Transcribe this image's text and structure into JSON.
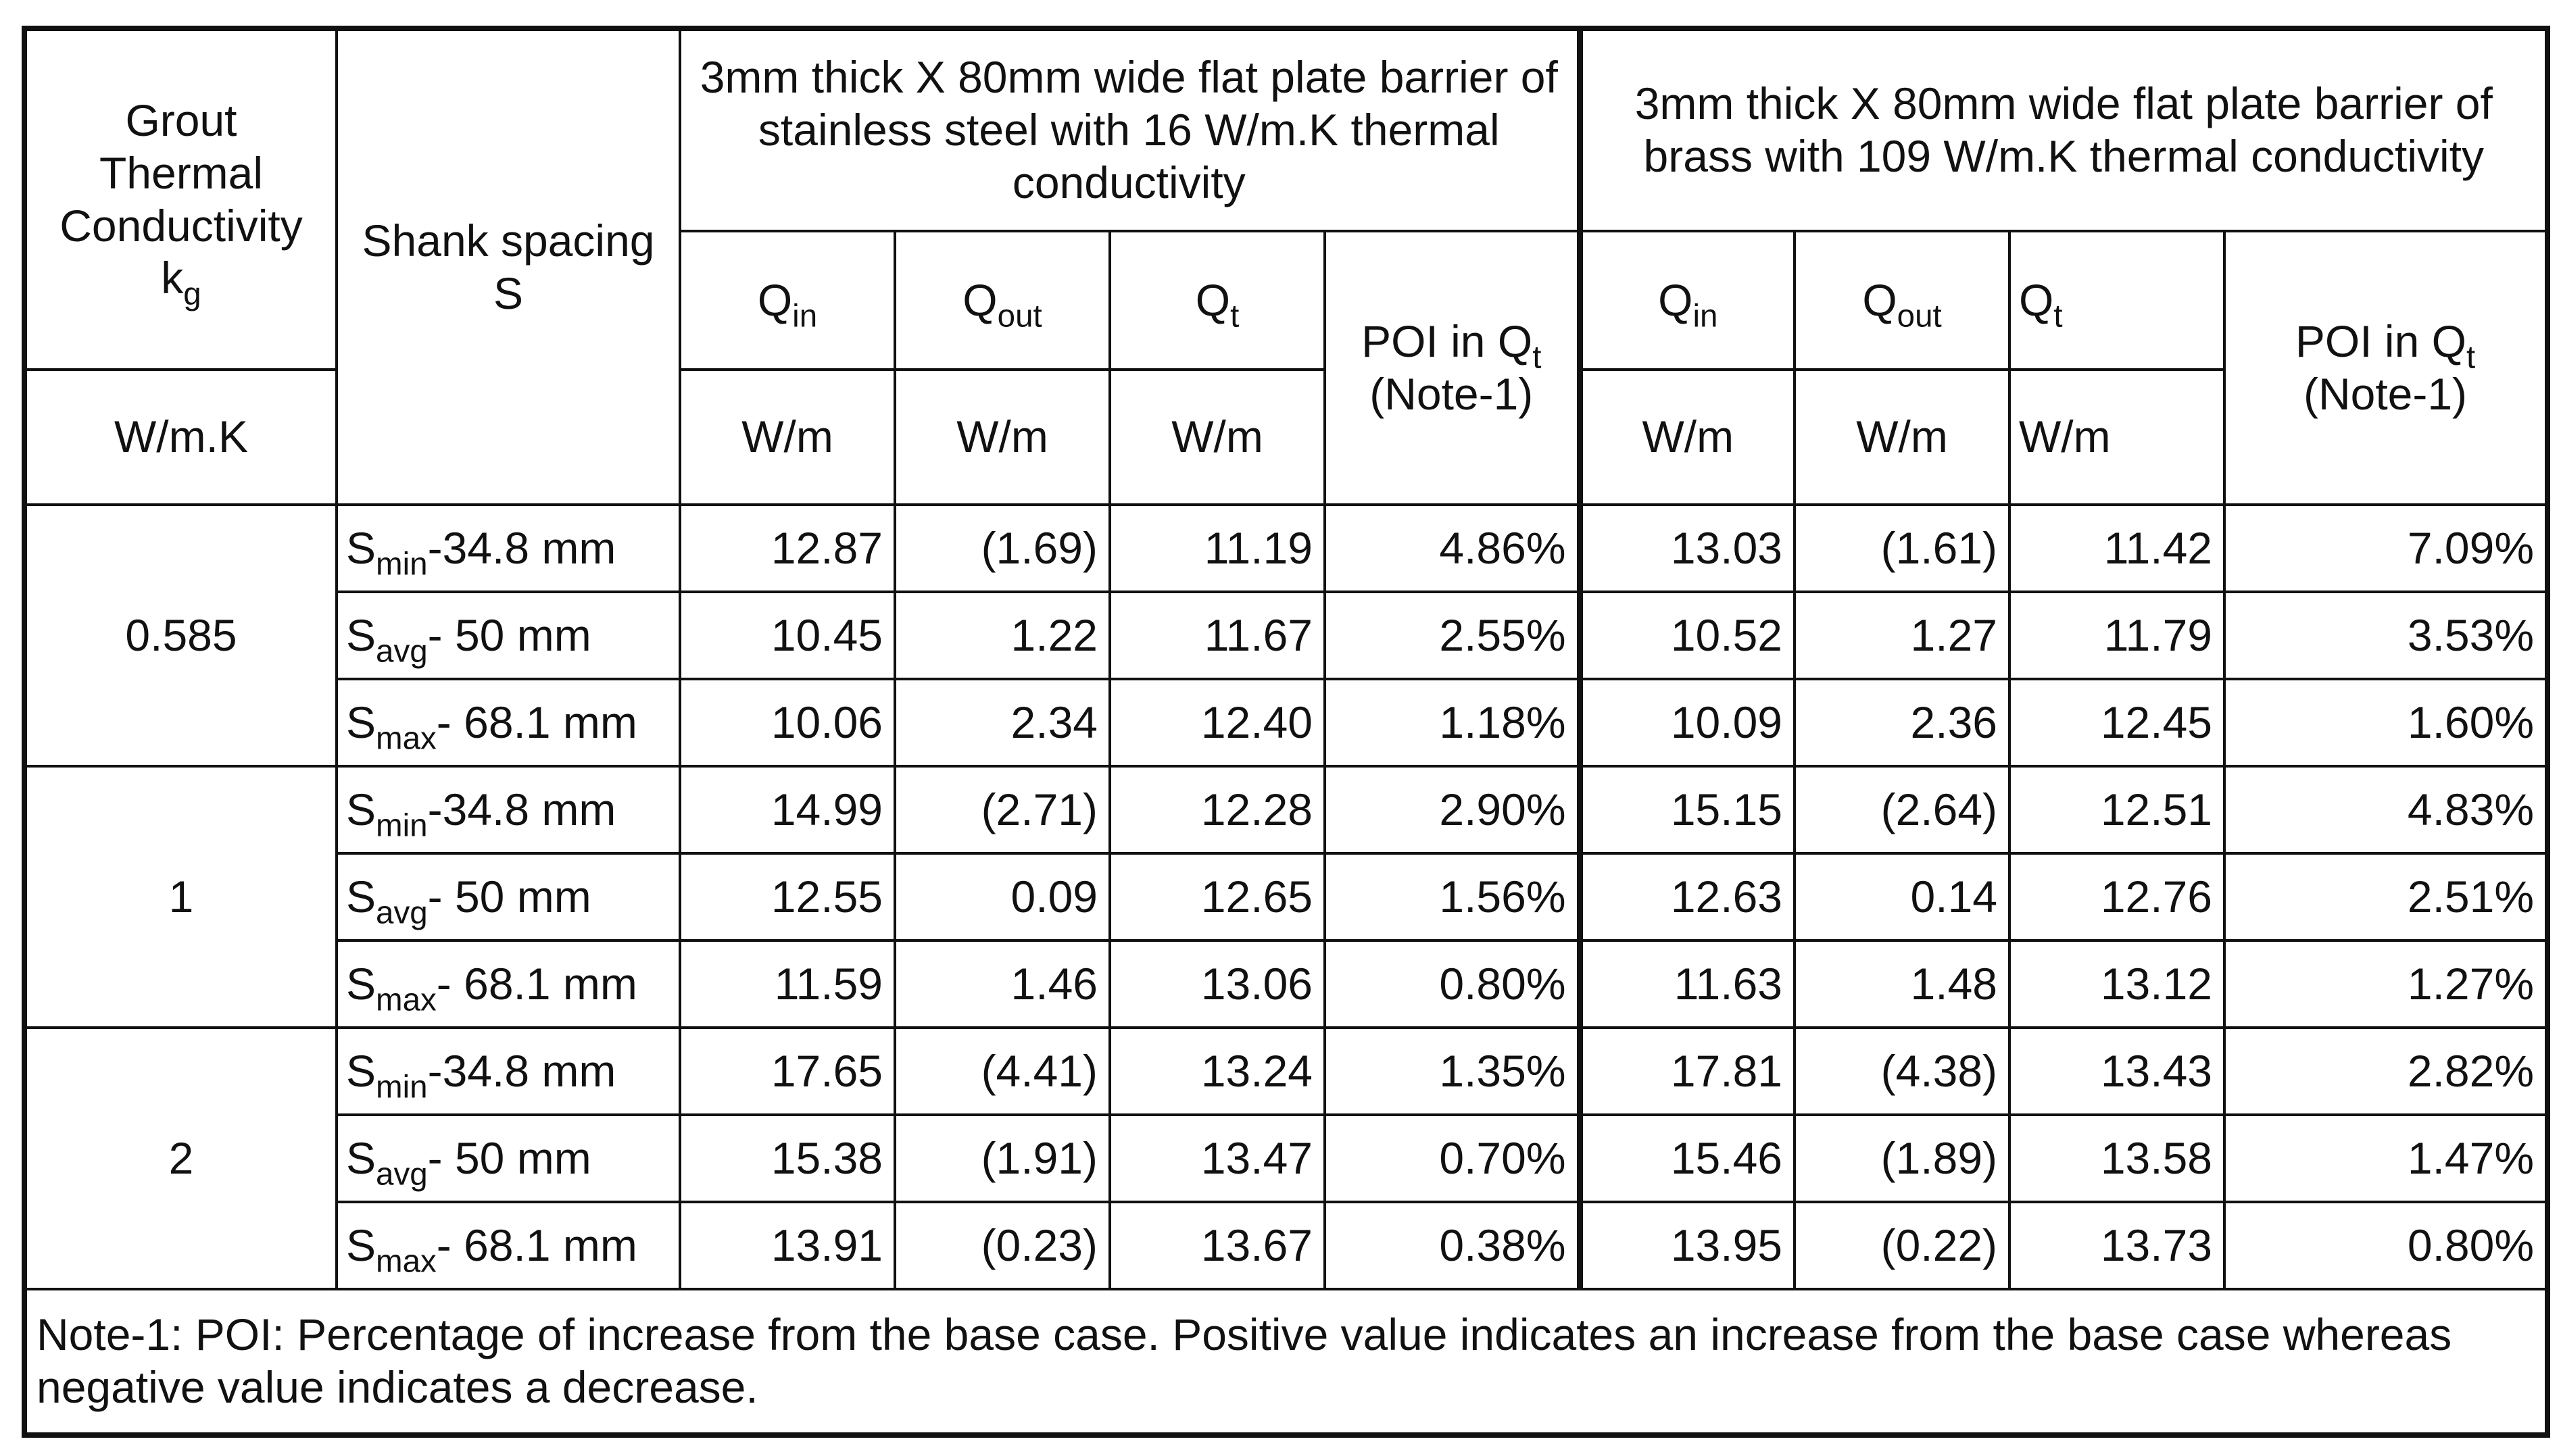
{
  "headers": {
    "grout_label": "Grout Thermal Conductivity k",
    "grout_label_line1": "Grout",
    "grout_label_line2": "Thermal",
    "grout_label_line3": "Conductivity",
    "grout_symbol": "k",
    "grout_symbol_sub": "g",
    "grout_unit": "W/m.K",
    "shank_line1": "Shank spacing",
    "shank_line2": "S",
    "group1_title": "3mm thick X 80mm wide flat plate barrier of stainless steel with 16 W/m.K thermal conductivity",
    "group2_title": "3mm thick X 80mm wide flat plate barrier of brass with 109 W/m.K thermal conductivity",
    "q_symbol": "Q",
    "q_in_sub": "in",
    "q_out_sub": "out",
    "q_t_sub": "t",
    "poi_prefix": "POI in Q",
    "poi_sub": "t",
    "poi_note": "(Note-1)",
    "unit_wm": "W/m"
  },
  "groups": [
    {
      "kg": "0.585",
      "rows": [
        {
          "s_main": "S",
          "s_sub": "min",
          "s_rest": "-34.8 mm",
          "ss_qin": "12.87",
          "ss_qout": "(1.69)",
          "ss_qt": "11.19",
          "ss_poi": "4.86%",
          "br_qin": "13.03",
          "br_qout": "(1.61)",
          "br_qt": "11.42",
          "br_poi": "7.09%"
        },
        {
          "s_main": "S",
          "s_sub": "avg",
          "s_rest": "- 50 mm",
          "ss_qin": "10.45",
          "ss_qout": "1.22",
          "ss_qt": "11.67",
          "ss_poi": "2.55%",
          "br_qin": "10.52",
          "br_qout": "1.27",
          "br_qt": "11.79",
          "br_poi": "3.53%"
        },
        {
          "s_main": "S",
          "s_sub": "max",
          "s_rest": "- 68.1 mm",
          "ss_qin": "10.06",
          "ss_qout": "2.34",
          "ss_qt": "12.40",
          "ss_poi": "1.18%",
          "br_qin": "10.09",
          "br_qout": "2.36",
          "br_qt": "12.45",
          "br_poi": "1.60%"
        }
      ]
    },
    {
      "kg": "1",
      "rows": [
        {
          "s_main": "S",
          "s_sub": "min",
          "s_rest": "-34.8 mm",
          "ss_qin": "14.99",
          "ss_qout": "(2.71)",
          "ss_qt": "12.28",
          "ss_poi": "2.90%",
          "br_qin": "15.15",
          "br_qout": "(2.64)",
          "br_qt": "12.51",
          "br_poi": "4.83%"
        },
        {
          "s_main": "S",
          "s_sub": "avg",
          "s_rest": "- 50 mm",
          "ss_qin": "12.55",
          "ss_qout": "0.09",
          "ss_qt": "12.65",
          "ss_poi": "1.56%",
          "br_qin": "12.63",
          "br_qout": "0.14",
          "br_qt": "12.76",
          "br_poi": "2.51%"
        },
        {
          "s_main": "S",
          "s_sub": "max",
          "s_rest": "- 68.1 mm",
          "ss_qin": "11.59",
          "ss_qout": "1.46",
          "ss_qt": "13.06",
          "ss_poi": "0.80%",
          "br_qin": "11.63",
          "br_qout": "1.48",
          "br_qt": "13.12",
          "br_poi": "1.27%"
        }
      ]
    },
    {
      "kg": "2",
      "rows": [
        {
          "s_main": "S",
          "s_sub": "min",
          "s_rest": "-34.8 mm",
          "ss_qin": "17.65",
          "ss_qout": "(4.41)",
          "ss_qt": "13.24",
          "ss_poi": "1.35%",
          "br_qin": "17.81",
          "br_qout": "(4.38)",
          "br_qt": "13.43",
          "br_poi": "2.82%"
        },
        {
          "s_main": "S",
          "s_sub": "avg",
          "s_rest": "- 50 mm",
          "ss_qin": "15.38",
          "ss_qout": "(1.91)",
          "ss_qt": "13.47",
          "ss_poi": "0.70%",
          "br_qin": "15.46",
          "br_qout": "(1.89)",
          "br_qt": "13.58",
          "br_poi": "1.47%"
        },
        {
          "s_main": "S",
          "s_sub": "max",
          "s_rest": "- 68.1 mm",
          "ss_qin": "13.91",
          "ss_qout": "(0.23)",
          "ss_qt": "13.67",
          "ss_poi": "0.38%",
          "br_qin": "13.95",
          "br_qout": "(0.22)",
          "br_qt": "13.73",
          "br_poi": "0.80%"
        }
      ]
    }
  ],
  "note": "Note-1: POI: Percentage of increase from the base case. Positive value indicates an increase from the base case whereas negative value indicates a decrease."
}
